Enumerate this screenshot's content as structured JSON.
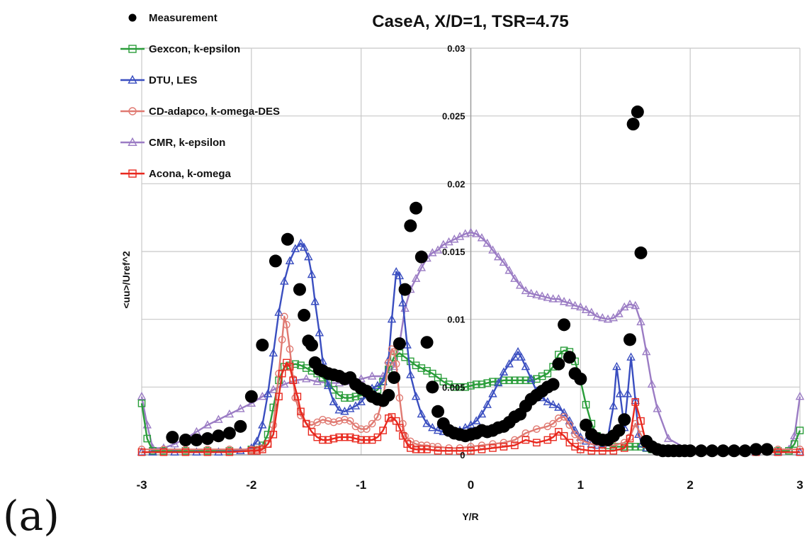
{
  "panel_label": "(a)",
  "chart_data": {
    "type": "line",
    "title": "CaseA, X/D=1, TSR=4.75",
    "xlabel": "Y/R",
    "ylabel": "<uu>/Uref^2",
    "xlim": [
      -3,
      3
    ],
    "ylim": [
      0,
      0.03
    ],
    "x_ticks": [
      -3,
      -2,
      -1,
      0,
      1,
      2,
      3
    ],
    "y_ticks": [
      0,
      0.005,
      0.01,
      0.015,
      0.02,
      0.025,
      0.03
    ],
    "x_tick_labels": [
      "-3",
      "-2",
      "-1",
      "0",
      "1",
      "2",
      "3"
    ],
    "y_tick_labels": [
      "0",
      "0.005",
      "0.01",
      "0.015",
      "0.02",
      "0.025",
      "0.03"
    ],
    "grid": true,
    "legend_position": "top-left",
    "series": [
      {
        "name": "Measurement",
        "color": "#000000",
        "marker": "filled-circle",
        "line": false,
        "x": [
          -2.72,
          -2.6,
          -2.5,
          -2.4,
          -2.3,
          -2.2,
          -2.1,
          -2.0,
          -1.9,
          -1.78,
          -1.67,
          -1.56,
          -1.52,
          -1.48,
          -1.45,
          -1.42,
          -1.38,
          -1.35,
          -1.3,
          -1.25,
          -1.2,
          -1.15,
          -1.1,
          -1.05,
          -1.0,
          -0.95,
          -0.9,
          -0.85,
          -0.8,
          -0.75,
          -0.7,
          -0.65,
          -0.6,
          -0.55,
          -0.5,
          -0.45,
          -0.4,
          -0.35,
          -0.3,
          -0.25,
          -0.2,
          -0.15,
          -0.1,
          -0.05,
          0.0,
          0.05,
          0.1,
          0.15,
          0.2,
          0.25,
          0.3,
          0.35,
          0.4,
          0.45,
          0.5,
          0.55,
          0.6,
          0.65,
          0.7,
          0.75,
          0.8,
          0.85,
          0.9,
          0.95,
          1.0,
          1.05,
          1.1,
          1.15,
          1.2,
          1.25,
          1.3,
          1.35,
          1.4,
          1.45,
          1.48,
          1.52,
          1.55,
          1.6,
          1.65,
          1.7,
          1.75,
          1.8,
          1.85,
          1.9,
          1.95,
          2.0,
          2.1,
          2.2,
          2.3,
          2.4,
          2.5,
          2.6,
          2.7
        ],
        "y": [
          0.0013,
          0.0011,
          0.0011,
          0.0012,
          0.0014,
          0.0016,
          0.0021,
          0.0043,
          0.0081,
          0.0143,
          0.0159,
          0.0122,
          0.0103,
          0.0084,
          0.0081,
          0.0068,
          0.0063,
          0.0062,
          0.006,
          0.0059,
          0.0058,
          0.0056,
          0.0057,
          0.0052,
          0.0049,
          0.0047,
          0.0043,
          0.0041,
          0.004,
          0.0044,
          0.0057,
          0.0082,
          0.0122,
          0.0169,
          0.0182,
          0.0146,
          0.0083,
          0.005,
          0.0032,
          0.0023,
          0.0018,
          0.0016,
          0.0015,
          0.0014,
          0.0015,
          0.0016,
          0.0018,
          0.0017,
          0.0018,
          0.002,
          0.0021,
          0.0024,
          0.0028,
          0.003,
          0.0036,
          0.0041,
          0.0044,
          0.0047,
          0.005,
          0.0052,
          0.0067,
          0.0096,
          0.0072,
          0.006,
          0.0056,
          0.0022,
          0.0015,
          0.0012,
          0.0011,
          0.0011,
          0.0014,
          0.0018,
          0.0026,
          0.0085,
          0.0244,
          0.0253,
          0.0149,
          0.001,
          0.0006,
          0.0004,
          0.0003,
          0.0003,
          0.0003,
          0.0003,
          0.0003,
          0.0003,
          0.0003,
          0.0003,
          0.0003,
          0.0003,
          0.0003,
          0.0004,
          0.0004
        ]
      },
      {
        "name": "Gexcon, k-epsilon",
        "color": "#2a9d3a",
        "marker": "open-square",
        "line": true,
        "x": [
          -3.0,
          -2.95,
          -2.9,
          -2.8,
          -2.6,
          -2.4,
          -2.2,
          -2.0,
          -1.9,
          -1.85,
          -1.8,
          -1.75,
          -1.7,
          -1.65,
          -1.6,
          -1.55,
          -1.5,
          -1.45,
          -1.4,
          -1.35,
          -1.3,
          -1.25,
          -1.2,
          -1.15,
          -1.1,
          -1.05,
          -1.0,
          -0.95,
          -0.9,
          -0.85,
          -0.8,
          -0.75,
          -0.7,
          -0.65,
          -0.6,
          -0.55,
          -0.5,
          -0.45,
          -0.4,
          -0.35,
          -0.3,
          -0.25,
          -0.2,
          -0.15,
          -0.1,
          -0.05,
          0.0,
          0.05,
          0.1,
          0.15,
          0.2,
          0.25,
          0.3,
          0.35,
          0.4,
          0.45,
          0.5,
          0.55,
          0.6,
          0.65,
          0.7,
          0.75,
          0.8,
          0.85,
          0.9,
          0.95,
          1.0,
          1.05,
          1.1,
          1.15,
          1.2,
          1.25,
          1.3,
          1.35,
          1.4,
          1.45,
          1.5,
          1.55,
          1.6,
          1.65,
          1.7,
          1.8,
          2.0,
          2.2,
          2.4,
          2.6,
          2.8,
          2.9,
          2.95,
          3.0
        ],
        "y": [
          0.0038,
          0.0012,
          0.0003,
          0.0003,
          0.0003,
          0.0003,
          0.0003,
          0.0004,
          0.0007,
          0.0015,
          0.0035,
          0.0055,
          0.0065,
          0.0066,
          0.0067,
          0.0066,
          0.0064,
          0.0062,
          0.006,
          0.0057,
          0.0053,
          0.0048,
          0.0044,
          0.0042,
          0.0042,
          0.0043,
          0.0044,
          0.0045,
          0.0046,
          0.0048,
          0.0054,
          0.0063,
          0.0072,
          0.0075,
          0.0072,
          0.0069,
          0.0066,
          0.0064,
          0.0062,
          0.006,
          0.0057,
          0.0054,
          0.0052,
          0.005,
          0.005,
          0.005,
          0.0051,
          0.0052,
          0.0052,
          0.0053,
          0.0054,
          0.0054,
          0.0055,
          0.0055,
          0.0055,
          0.0055,
          0.0055,
          0.0055,
          0.0056,
          0.0058,
          0.006,
          0.0065,
          0.0074,
          0.0077,
          0.0076,
          0.0069,
          0.0055,
          0.0037,
          0.0023,
          0.0014,
          0.0009,
          0.0007,
          0.0006,
          0.0006,
          0.0006,
          0.0006,
          0.0006,
          0.0006,
          0.0005,
          0.0004,
          0.0003,
          0.0003,
          0.0003,
          0.0003,
          0.0003,
          0.0003,
          0.0003,
          0.0003,
          0.0008,
          0.0018
        ]
      },
      {
        "name": "DTU, LES",
        "color": "#3a4ec0",
        "marker": "open-triangle",
        "line": true,
        "x": [
          -3.0,
          -2.9,
          -2.7,
          -2.5,
          -2.3,
          -2.1,
          -2.0,
          -1.95,
          -1.9,
          -1.85,
          -1.8,
          -1.75,
          -1.7,
          -1.65,
          -1.6,
          -1.55,
          -1.52,
          -1.48,
          -1.45,
          -1.42,
          -1.38,
          -1.35,
          -1.3,
          -1.25,
          -1.2,
          -1.15,
          -1.1,
          -1.05,
          -1.0,
          -0.95,
          -0.9,
          -0.85,
          -0.8,
          -0.75,
          -0.72,
          -0.68,
          -0.65,
          -0.62,
          -0.58,
          -0.55,
          -0.5,
          -0.45,
          -0.4,
          -0.35,
          -0.3,
          -0.25,
          -0.2,
          -0.15,
          -0.1,
          -0.05,
          0.0,
          0.05,
          0.1,
          0.15,
          0.2,
          0.25,
          0.3,
          0.35,
          0.4,
          0.43,
          0.46,
          0.5,
          0.55,
          0.6,
          0.65,
          0.7,
          0.75,
          0.8,
          0.85,
          0.9,
          0.95,
          1.0,
          1.05,
          1.1,
          1.15,
          1.2,
          1.25,
          1.3,
          1.33,
          1.36,
          1.4,
          1.43,
          1.46,
          1.5,
          1.53,
          1.56,
          1.6,
          1.7,
          1.8,
          2.0,
          2.2,
          2.4,
          2.6,
          2.8,
          3.0
        ],
        "y": [
          0.0002,
          0.0002,
          0.0002,
          0.0002,
          0.0002,
          0.0003,
          0.0005,
          0.001,
          0.0022,
          0.0045,
          0.0075,
          0.0105,
          0.0128,
          0.0143,
          0.0152,
          0.0156,
          0.0153,
          0.0146,
          0.0133,
          0.0113,
          0.009,
          0.0069,
          0.0051,
          0.0039,
          0.0033,
          0.0032,
          0.0034,
          0.0036,
          0.0039,
          0.0044,
          0.0049,
          0.0051,
          0.0054,
          0.007,
          0.01,
          0.0135,
          0.0132,
          0.0112,
          0.0081,
          0.0059,
          0.0043,
          0.003,
          0.0023,
          0.002,
          0.0018,
          0.0017,
          0.0017,
          0.0017,
          0.0018,
          0.002,
          0.0022,
          0.0025,
          0.003,
          0.0037,
          0.0045,
          0.0053,
          0.0061,
          0.0067,
          0.0072,
          0.0076,
          0.0072,
          0.0065,
          0.0056,
          0.0047,
          0.0042,
          0.0039,
          0.0037,
          0.0035,
          0.0031,
          0.0025,
          0.0018,
          0.0013,
          0.001,
          0.0008,
          0.0007,
          0.0008,
          0.0013,
          0.0036,
          0.0065,
          0.0045,
          0.002,
          0.0045,
          0.0072,
          0.004,
          0.0015,
          0.0008,
          0.0005,
          0.0003,
          0.0002,
          0.0002,
          0.0002,
          0.0002,
          0.0002,
          0.0002,
          0.0002
        ]
      },
      {
        "name": "CD-adapco, k-omega-DES",
        "color": "#e07a72",
        "marker": "open-circle",
        "line": true,
        "x": [
          -3.0,
          -2.8,
          -2.6,
          -2.4,
          -2.2,
          -2.0,
          -1.95,
          -1.9,
          -1.85,
          -1.8,
          -1.75,
          -1.72,
          -1.7,
          -1.68,
          -1.65,
          -1.62,
          -1.6,
          -1.55,
          -1.5,
          -1.45,
          -1.4,
          -1.35,
          -1.3,
          -1.25,
          -1.2,
          -1.15,
          -1.1,
          -1.05,
          -1.0,
          -0.95,
          -0.9,
          -0.85,
          -0.8,
          -0.75,
          -0.72,
          -0.7,
          -0.68,
          -0.65,
          -0.62,
          -0.6,
          -0.55,
          -0.5,
          -0.45,
          -0.4,
          -0.35,
          -0.3,
          -0.2,
          -0.1,
          0.0,
          0.1,
          0.2,
          0.3,
          0.4,
          0.5,
          0.6,
          0.7,
          0.75,
          0.8,
          0.85,
          0.9,
          0.95,
          1.0,
          1.1,
          1.2,
          1.3,
          1.4,
          1.45,
          1.5,
          1.55,
          1.6,
          1.7,
          1.8,
          2.0,
          2.2,
          2.4,
          2.6,
          2.8,
          3.0
        ],
        "y": [
          0.0004,
          0.0004,
          0.0004,
          0.0004,
          0.0004,
          0.0004,
          0.0004,
          0.0005,
          0.0008,
          0.0022,
          0.006,
          0.0085,
          0.0102,
          0.0096,
          0.0078,
          0.0056,
          0.0042,
          0.0029,
          0.0023,
          0.0022,
          0.0024,
          0.0026,
          0.0025,
          0.0024,
          0.0025,
          0.0026,
          0.0025,
          0.0021,
          0.0019,
          0.0019,
          0.0023,
          0.0028,
          0.0042,
          0.0068,
          0.0078,
          0.0076,
          0.0067,
          0.0042,
          0.0023,
          0.0014,
          0.001,
          0.0008,
          0.0007,
          0.0007,
          0.0006,
          0.0006,
          0.0005,
          0.0005,
          0.0006,
          0.0007,
          0.0008,
          0.0009,
          0.0011,
          0.0016,
          0.0019,
          0.0021,
          0.0023,
          0.0027,
          0.0028,
          0.0022,
          0.0015,
          0.0011,
          0.0008,
          0.0007,
          0.0007,
          0.0009,
          0.0013,
          0.0023,
          0.0015,
          0.0008,
          0.0005,
          0.0004,
          0.0004,
          0.0004,
          0.0004,
          0.0004,
          0.0004,
          0.0004
        ]
      },
      {
        "name": "CMR, k-epsilon",
        "color": "#9b7cc4",
        "marker": "open-triangle",
        "line": true,
        "x": [
          -3.0,
          -2.95,
          -2.9,
          -2.8,
          -2.7,
          -2.6,
          -2.5,
          -2.4,
          -2.3,
          -2.2,
          -2.1,
          -2.0,
          -1.9,
          -1.8,
          -1.7,
          -1.6,
          -1.5,
          -1.4,
          -1.3,
          -1.2,
          -1.1,
          -1.0,
          -0.9,
          -0.8,
          -0.7,
          -0.65,
          -0.6,
          -0.55,
          -0.5,
          -0.45,
          -0.4,
          -0.35,
          -0.3,
          -0.25,
          -0.2,
          -0.15,
          -0.1,
          -0.05,
          0.0,
          0.05,
          0.1,
          0.15,
          0.2,
          0.25,
          0.3,
          0.35,
          0.4,
          0.45,
          0.5,
          0.55,
          0.6,
          0.65,
          0.7,
          0.75,
          0.8,
          0.85,
          0.9,
          0.95,
          1.0,
          1.05,
          1.1,
          1.15,
          1.2,
          1.25,
          1.3,
          1.35,
          1.4,
          1.45,
          1.5,
          1.55,
          1.6,
          1.65,
          1.7,
          1.8,
          2.0,
          2.2,
          2.4,
          2.6,
          2.8,
          2.9,
          2.95,
          3.0
        ],
        "y": [
          0.0043,
          0.0022,
          0.0005,
          0.0005,
          0.0008,
          0.0012,
          0.0017,
          0.0022,
          0.0026,
          0.003,
          0.0034,
          0.0038,
          0.0043,
          0.0048,
          0.0052,
          0.0055,
          0.0056,
          0.0054,
          0.0053,
          0.0053,
          0.0054,
          0.0056,
          0.0058,
          0.0058,
          0.0065,
          0.0082,
          0.0108,
          0.0122,
          0.013,
          0.0138,
          0.0145,
          0.0149,
          0.0151,
          0.0155,
          0.0157,
          0.0159,
          0.0161,
          0.0163,
          0.0164,
          0.0163,
          0.016,
          0.0156,
          0.0151,
          0.0146,
          0.0142,
          0.0136,
          0.013,
          0.0125,
          0.0121,
          0.0119,
          0.0118,
          0.0117,
          0.0116,
          0.0115,
          0.0115,
          0.0113,
          0.0112,
          0.011,
          0.0109,
          0.0107,
          0.0105,
          0.0102,
          0.0101,
          0.01,
          0.0101,
          0.0104,
          0.0109,
          0.0111,
          0.011,
          0.0098,
          0.0076,
          0.0052,
          0.0034,
          0.0012,
          0.0003,
          0.0002,
          0.0002,
          0.0002,
          0.0002,
          0.0004,
          0.0014,
          0.0043
        ]
      },
      {
        "name": "Acona, k-omega",
        "color": "#e8281e",
        "marker": "open-square",
        "line": true,
        "x": [
          -3.0,
          -2.8,
          -2.6,
          -2.4,
          -2.2,
          -2.0,
          -1.95,
          -1.9,
          -1.85,
          -1.8,
          -1.75,
          -1.72,
          -1.68,
          -1.65,
          -1.62,
          -1.58,
          -1.55,
          -1.5,
          -1.45,
          -1.4,
          -1.35,
          -1.3,
          -1.25,
          -1.2,
          -1.15,
          -1.1,
          -1.05,
          -1.0,
          -0.95,
          -0.9,
          -0.85,
          -0.8,
          -0.75,
          -0.72,
          -0.68,
          -0.65,
          -0.62,
          -0.58,
          -0.55,
          -0.5,
          -0.45,
          -0.4,
          -0.3,
          -0.2,
          -0.1,
          0.0,
          0.1,
          0.2,
          0.3,
          0.4,
          0.5,
          0.6,
          0.7,
          0.75,
          0.8,
          0.85,
          0.9,
          0.95,
          1.0,
          1.1,
          1.2,
          1.3,
          1.4,
          1.45,
          1.5,
          1.55,
          1.6,
          1.7,
          1.8,
          2.0,
          2.2,
          2.4,
          2.6,
          2.8,
          3.0
        ],
        "y": [
          0.0002,
          0.0002,
          0.0002,
          0.0002,
          0.0002,
          0.0003,
          0.0003,
          0.0004,
          0.0008,
          0.0015,
          0.0043,
          0.006,
          0.0068,
          0.0065,
          0.0055,
          0.0043,
          0.0032,
          0.0023,
          0.0017,
          0.0013,
          0.0011,
          0.0011,
          0.0012,
          0.0013,
          0.0013,
          0.0013,
          0.0012,
          0.0011,
          0.0011,
          0.0011,
          0.0013,
          0.0018,
          0.0027,
          0.0028,
          0.0025,
          0.002,
          0.0014,
          0.0008,
          0.0005,
          0.0004,
          0.0004,
          0.0004,
          0.0003,
          0.0003,
          0.0003,
          0.0003,
          0.0004,
          0.0005,
          0.0006,
          0.0007,
          0.0011,
          0.0009,
          0.0011,
          0.0013,
          0.0017,
          0.0014,
          0.0009,
          0.0006,
          0.0004,
          0.0003,
          0.0003,
          0.0003,
          0.0005,
          0.0012,
          0.0039,
          0.0025,
          0.0008,
          0.0003,
          0.0002,
          0.0002,
          0.0002,
          0.0002,
          0.0002,
          0.0002,
          0.0002
        ]
      }
    ]
  }
}
